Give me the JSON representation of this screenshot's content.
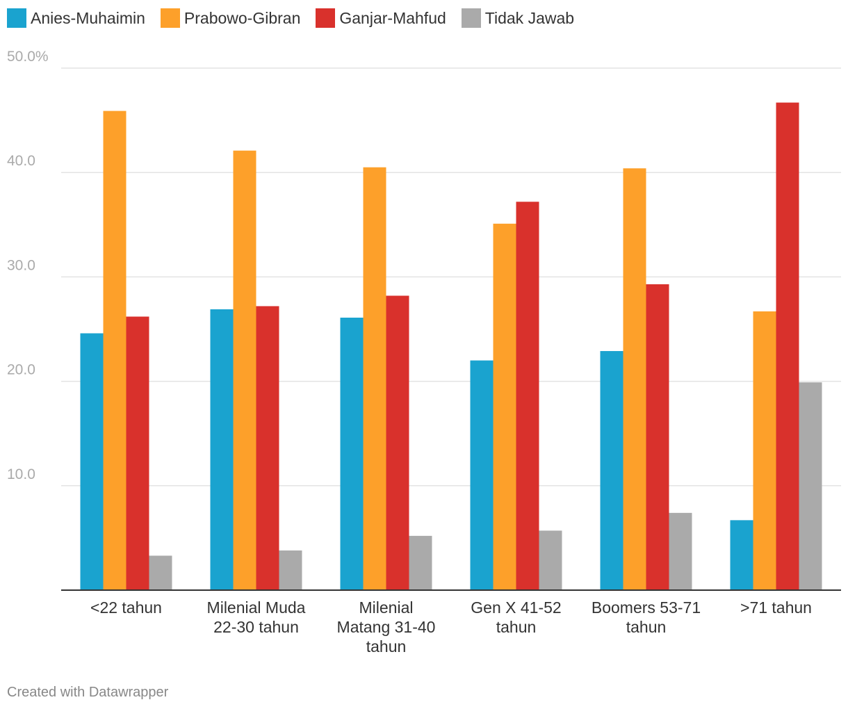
{
  "chart_data": {
    "type": "bar",
    "categories": [
      [
        "<22 tahun"
      ],
      [
        "Milenial Muda",
        "22-30 tahun"
      ],
      [
        "Milenial",
        "Matang 31-40",
        "tahun"
      ],
      [
        "Gen X 41-52",
        "tahun"
      ],
      [
        "Boomers 53-71",
        "tahun"
      ],
      [
        ">71 tahun"
      ]
    ],
    "series": [
      {
        "name": "Anies-Muhaimin",
        "color": "#1aa3cf",
        "values": [
          24.6,
          26.9,
          26.1,
          22.0,
          22.9,
          6.7
        ]
      },
      {
        "name": "Prabowo-Gibran",
        "color": "#fda02a",
        "values": [
          45.9,
          42.1,
          40.5,
          35.1,
          40.4,
          26.7
        ]
      },
      {
        "name": "Ganjar-Mahfud",
        "color": "#d9312c",
        "values": [
          26.2,
          27.2,
          28.2,
          37.2,
          29.3,
          46.7
        ]
      },
      {
        "name": "Tidak Jawab",
        "color": "#aaaaaa",
        "values": [
          3.3,
          3.8,
          5.2,
          5.7,
          7.4,
          19.9
        ]
      }
    ],
    "ylim": [
      0,
      50
    ],
    "yticks": [
      "10.0",
      "20.0",
      "30.0",
      "40.0",
      "50.0%"
    ],
    "ytick_values": [
      10,
      20,
      30,
      40,
      50
    ],
    "grid": true,
    "legend_position": "top-left",
    "credit": "Created with Datawrapper"
  }
}
